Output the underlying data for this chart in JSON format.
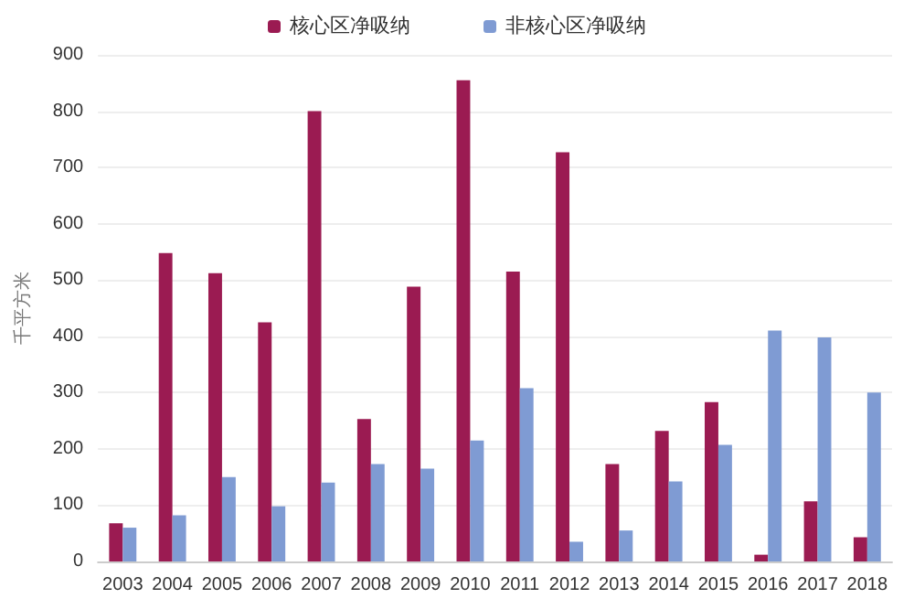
{
  "chart_data": {
    "type": "bar",
    "ylabel": "千平方米",
    "categories": [
      "2003",
      "2004",
      "2005",
      "2006",
      "2007",
      "2008",
      "2009",
      "2010",
      "2011",
      "2012",
      "2013",
      "2014",
      "2015",
      "2016",
      "2017",
      "2018"
    ],
    "series": [
      {
        "name": "核心区净吸纳",
        "color": "#9b1b52",
        "values": [
          68,
          548,
          512,
          425,
          800,
          253,
          488,
          855,
          515,
          727,
          173,
          232,
          283,
          12,
          107,
          43
        ]
      },
      {
        "name": "非核心区净吸纳",
        "color": "#7f9bd3",
        "values": [
          60,
          82,
          150,
          98,
          140,
          173,
          165,
          215,
          308,
          35,
          55,
          142,
          207,
          410,
          398,
          300
        ]
      }
    ],
    "ylim": [
      0,
      900
    ],
    "yticks": [
      0,
      100,
      200,
      300,
      400,
      500,
      600,
      700,
      800,
      900
    ],
    "grid": "y",
    "legend": "top"
  }
}
